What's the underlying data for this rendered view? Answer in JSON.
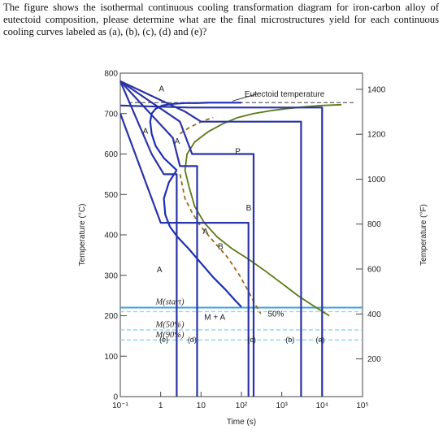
{
  "question": {
    "text": "The figure shows the isothermal continuous cooling transformation diagram for iron-carbon alloy of eutectoid composition, please determine what are the final microstructures yield for each continuous cooling curves labeled as (a), (b), (c), (d) and (e)?"
  },
  "colors": {
    "cooling": "#2a33a6",
    "start_curve": "#1a2fb5",
    "finish_curve": "#5a7a14",
    "fifty": "#9a6a1e",
    "eutectoid": "#555555",
    "m_start": "#3aa0e0",
    "m_dashed": "#8fd0f0",
    "axis": "#444444"
  },
  "chart_data": {
    "type": "line",
    "title": "",
    "xlabel": "Time (s)",
    "ylabel": "Temperature (°C)",
    "y2label": "Temperature (°F)",
    "xscale": "log",
    "xlim": [
      0.1,
      100000
    ],
    "ylim": [
      0,
      800
    ],
    "x_ticks": [
      0.1,
      1,
      10,
      100,
      1000,
      10000,
      100000
    ],
    "x_tick_labels": [
      "10⁻¹",
      "1",
      "10",
      "10²",
      "10³",
      "10⁴",
      "10⁵"
    ],
    "y_ticks": [
      0,
      100,
      200,
      300,
      400,
      500,
      600,
      700,
      800
    ],
    "y_tick_labels": [
      "0",
      "100",
      "200",
      "300",
      "400",
      "500",
      "600",
      "700",
      "800"
    ],
    "y2_ticks_celsius": [
      93.3,
      204.4,
      315.6,
      426.7,
      537.8,
      648.9,
      760
    ],
    "y2_tick_labels": [
      "200",
      "400",
      "600",
      "800",
      "1000",
      "1200",
      "1400"
    ],
    "eutectoid_temp": 727,
    "annotations": {
      "eutectoid": "Eutectoid temperature",
      "m_start": "M(start)",
      "m_50": "M(50%)",
      "m_90": "M(90%)",
      "fifty": "50%",
      "ma": "M + A",
      "a_top": "A",
      "a_mid": "A",
      "a_low": "A",
      "a_nose": "A",
      "a_arrow": "A",
      "p": "P",
      "b1": "B",
      "b2": "B"
    },
    "horizontal_lines": {
      "m_start": 220,
      "m_50": 165,
      "m_90": 140
    },
    "series": [
      {
        "key": "start",
        "x": [
          2.5,
          1.2,
          0.75,
          0.6,
          0.55,
          0.6,
          0.75,
          1.1,
          2,
          4,
          8,
          15,
          30,
          60,
          100
        ],
        "y": [
          560,
          590,
          620,
          650,
          680,
          700,
          712,
          720,
          724,
          726,
          726,
          727,
          727,
          727,
          727
        ]
      },
      {
        "key": "start_low",
        "x": [
          2.5,
          1.6,
          1.2,
          1.3,
          1.7,
          2.6,
          5,
          10,
          20,
          40,
          70,
          100
        ],
        "y": [
          560,
          530,
          490,
          450,
          420,
          395,
          365,
          330,
          295,
          265,
          238,
          222
        ]
      },
      {
        "key": "finish",
        "x": [
          5,
          4,
          4.5,
          7,
          15,
          35,
          80,
          200,
          600,
          1500,
          4000,
          10000,
          30000
        ],
        "y": [
          520,
          560,
          600,
          630,
          655,
          675,
          690,
          700,
          708,
          713,
          717,
          720,
          722
        ]
      },
      {
        "key": "finish_low",
        "x": [
          5,
          7,
          12,
          25,
          60,
          150,
          400,
          1000,
          2500,
          6000,
          15000
        ],
        "y": [
          520,
          470,
          430,
          395,
          365,
          340,
          310,
          280,
          250,
          225,
          200
        ]
      },
      {
        "key": "fifty",
        "x": [
          3,
          5,
          8,
          12,
          20
        ],
        "y": [
          650,
          665,
          675,
          683,
          690
        ]
      },
      {
        "key": "fifty_low",
        "x": [
          3,
          4,
          6,
          10,
          20,
          45,
          90,
          150,
          220,
          300
        ],
        "y": [
          550,
          490,
          455,
          420,
          385,
          345,
          300,
          260,
          228,
          205
        ]
      },
      {
        "key": "cool_a",
        "x": [
          0.1,
          5,
          10000,
          10000
        ],
        "y": [
          720,
          715,
          715,
          0
        ]
      },
      {
        "key": "cool_b",
        "x": [
          0.1,
          4,
          10,
          3000,
          3000
        ],
        "y": [
          780,
          705,
          680,
          680,
          0
        ]
      },
      {
        "key": "cool_c",
        "x": [
          0.1,
          3,
          6,
          200,
          200
        ],
        "y": [
          780,
          680,
          600,
          600,
          0
        ]
      },
      {
        "key": "cool_d",
        "x": [
          0.1,
          2,
          3,
          8,
          8
        ],
        "y": [
          780,
          640,
          570,
          570,
          0
        ]
      },
      {
        "key": "cool_e",
        "x": [
          0.1,
          0.6,
          1.2,
          2.5,
          2.5
        ],
        "y": [
          780,
          600,
          550,
          550,
          0
        ]
      },
      {
        "key": "cool_f",
        "x": [
          0.1,
          1,
          150,
          150
        ],
        "y": [
          700,
          430,
          430,
          0
        ]
      }
    ],
    "curve_labels": [
      {
        "text": "(e)",
        "x": 1.2,
        "y": 135
      },
      {
        "text": "(d)",
        "x": 6,
        "y": 135
      },
      {
        "text": "(c)",
        "x": 180,
        "y": 135
      },
      {
        "text": "(b)",
        "x": 1600,
        "y": 135
      },
      {
        "text": "(a)",
        "x": 9000,
        "y": 135
      }
    ]
  }
}
